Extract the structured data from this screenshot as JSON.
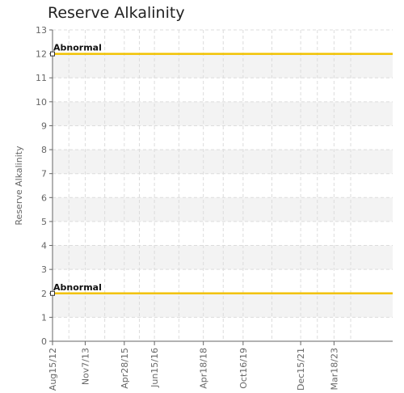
{
  "chart_data": {
    "type": "line",
    "title": "Reserve Alkalinity",
    "ylabel": "Reserve Alkalinity",
    "xlabel": "",
    "ylim": [
      0,
      13
    ],
    "xlim": [
      "2012-08-15",
      "2025-06-01"
    ],
    "yticks": [
      0,
      1,
      2,
      3,
      4,
      5,
      6,
      7,
      8,
      9,
      10,
      11,
      12,
      13
    ],
    "xticks": [
      {
        "label": "Aug15/12",
        "date": "2012-08-15"
      },
      {
        "label": "Nov7/13",
        "date": "2013-11-07"
      },
      {
        "label": "Apr28/15",
        "date": "2015-04-28"
      },
      {
        "label": "Jun15/16",
        "date": "2016-06-15"
      },
      {
        "label": "Apr18/18",
        "date": "2018-04-18"
      },
      {
        "label": "Oct16/19",
        "date": "2019-10-16"
      },
      {
        "label": "Dec15/21",
        "date": "2021-12-15"
      },
      {
        "label": "Mar18/23",
        "date": "2023-03-18"
      }
    ],
    "series": [
      {
        "name": "Abnormal",
        "color": "#f2c200",
        "x": [
          "2012-08-15",
          "2025-06-01"
        ],
        "values": [
          12,
          12
        ]
      },
      {
        "name": "Abnormal",
        "color": "#f2c200",
        "x": [
          "2012-08-15",
          "2025-06-01"
        ],
        "values": [
          2,
          2
        ]
      }
    ],
    "grid": true,
    "banded_background": true
  }
}
